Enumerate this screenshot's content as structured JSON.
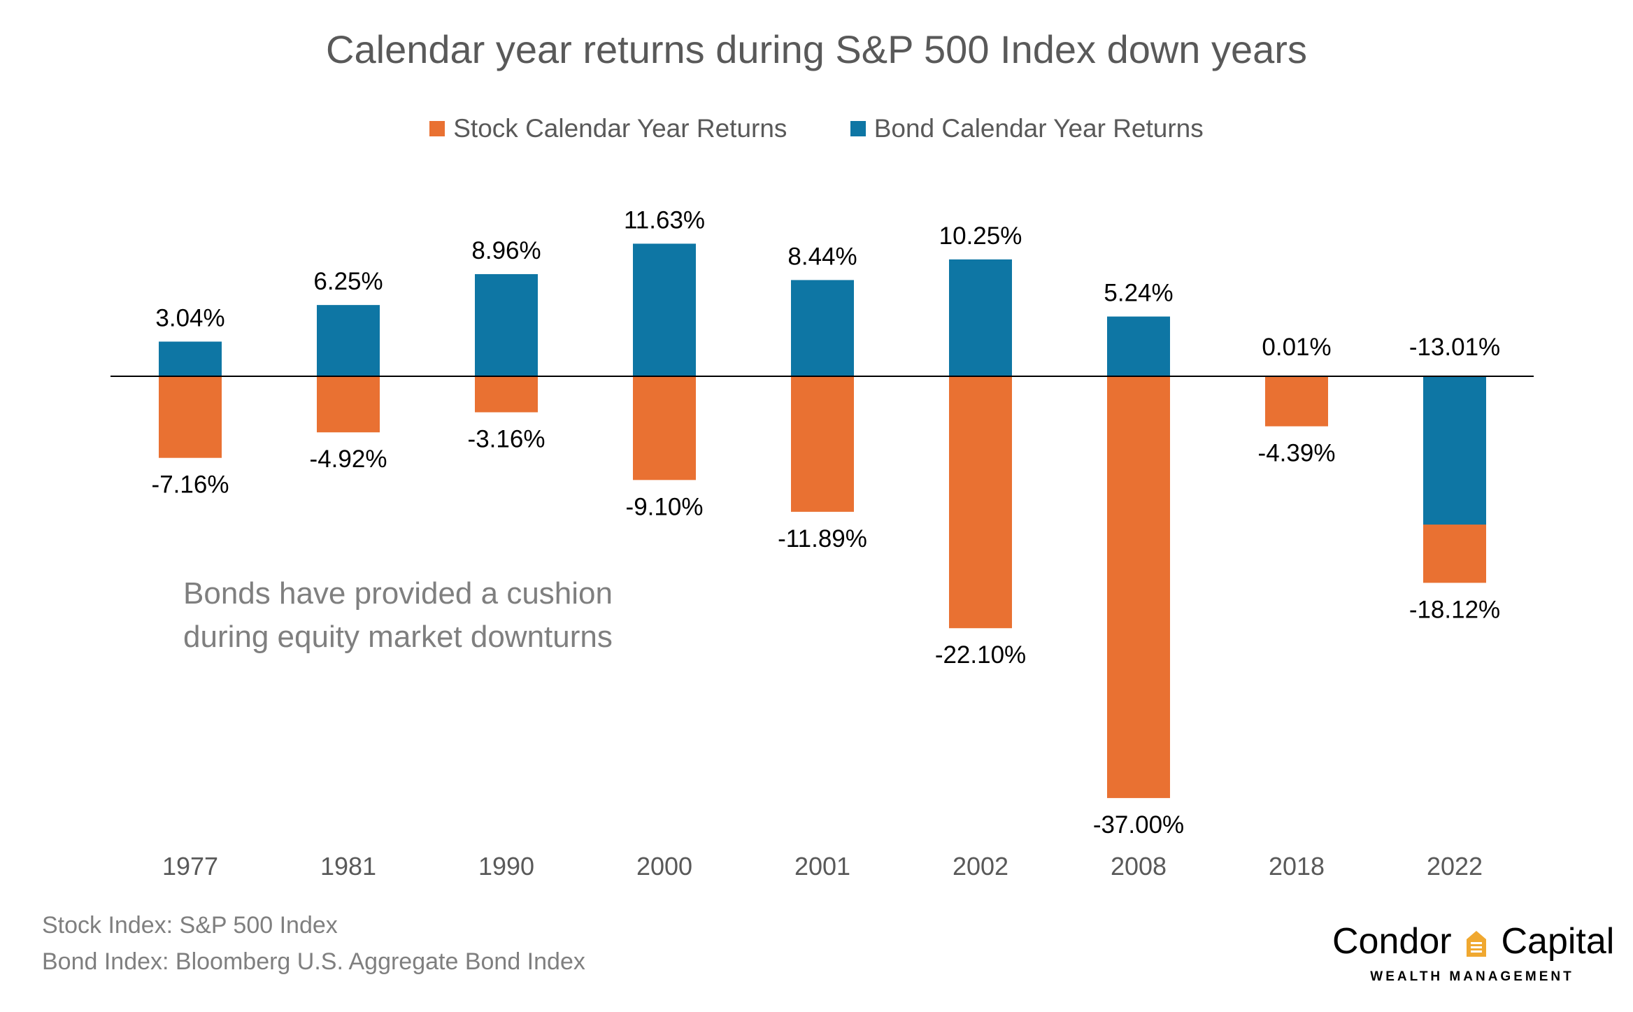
{
  "chart_data": {
    "type": "bar",
    "title": "Calendar year returns during S&P 500 Index down years",
    "categories": [
      "1977",
      "1981",
      "1990",
      "2000",
      "2001",
      "2002",
      "2008",
      "2018",
      "2022"
    ],
    "series": [
      {
        "name": "Stock Calendar Year Returns",
        "color": "#E97132",
        "values": [
          -7.16,
          -4.92,
          -3.16,
          -9.1,
          -11.89,
          -22.1,
          -37.0,
          -4.39,
          -18.12
        ],
        "labels": [
          "-7.16%",
          "-4.92%",
          "-3.16%",
          "-9.10%",
          "-11.89%",
          "-22.10%",
          "-37.00%",
          "-4.39%",
          "-18.12%"
        ]
      },
      {
        "name": "Bond Calendar Year Returns",
        "color": "#0E76A4",
        "values": [
          3.04,
          6.25,
          8.96,
          11.63,
          8.44,
          10.25,
          5.24,
          0.01,
          -13.01
        ],
        "labels": [
          "3.04%",
          "6.25%",
          "8.96%",
          "11.63%",
          "8.44%",
          "10.25%",
          "5.24%",
          "0.01%",
          "-13.01%"
        ]
      }
    ],
    "ylim": [
      -37,
      12
    ],
    "xlabel": "",
    "ylabel": "",
    "grid": false,
    "legend_position": "top-center",
    "annotation": [
      "Bonds have provided a cushion",
      "during equity market downturns"
    ]
  },
  "sources": {
    "stock_index": "Stock Index: S&P 500 Index",
    "bond_index": "Bond Index: Bloomberg U.S. Aggregate Bond Index"
  },
  "logo": {
    "name_left": "Condor",
    "name_right": "Capital",
    "tagline": "WEALTH MANAGEMENT",
    "icon": "house-icon",
    "icon_color": "#F0A830"
  }
}
